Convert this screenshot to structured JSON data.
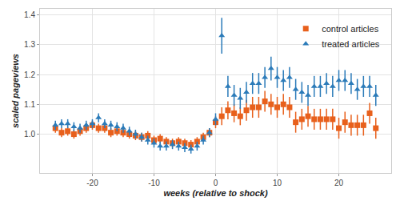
{
  "chart_data": {
    "type": "scatter",
    "x_label": "weeks (relative to shock)",
    "y_label": "scaled pageviews",
    "x": [
      -26,
      -25,
      -24,
      -23,
      -22,
      -21,
      -20,
      -19,
      -18,
      -17,
      -16,
      -15,
      -14,
      -13,
      -12,
      -11,
      -10,
      -9,
      -8,
      -7,
      -6,
      -5,
      -4,
      -3,
      -2,
      -1,
      0,
      1,
      2,
      3,
      4,
      5,
      6,
      7,
      8,
      9,
      10,
      11,
      12,
      13,
      14,
      15,
      16,
      17,
      18,
      19,
      20,
      21,
      22,
      23,
      24,
      25,
      26
    ],
    "series": [
      {
        "name": "control articles",
        "color": "#e8601c",
        "marker": "square",
        "values": [
          1.02,
          1.005,
          1.01,
          1.0,
          1.01,
          1.02,
          1.03,
          1.02,
          1.02,
          1.005,
          1.01,
          1.005,
          1.0,
          0.995,
          0.99,
          0.995,
          0.98,
          0.985,
          0.975,
          0.97,
          0.975,
          0.97,
          0.965,
          0.975,
          0.99,
          1.005,
          1.04,
          1.06,
          1.08,
          1.07,
          1.06,
          1.08,
          1.09,
          1.09,
          1.11,
          1.1,
          1.09,
          1.1,
          1.09,
          1.04,
          1.05,
          1.06,
          1.05,
          1.05,
          1.05,
          1.05,
          1.02,
          1.04,
          1.03,
          1.03,
          1.03,
          1.07,
          1.02
        ],
        "error": [
          0.015,
          0.015,
          0.015,
          0.015,
          0.015,
          0.015,
          0.015,
          0.015,
          0.015,
          0.015,
          0.015,
          0.015,
          0.015,
          0.015,
          0.015,
          0.015,
          0.015,
          0.015,
          0.015,
          0.015,
          0.015,
          0.015,
          0.015,
          0.015,
          0.015,
          0.015,
          0.02,
          0.03,
          0.03,
          0.03,
          0.03,
          0.035,
          0.035,
          0.035,
          0.035,
          0.035,
          0.035,
          0.035,
          0.035,
          0.035,
          0.035,
          0.035,
          0.035,
          0.035,
          0.035,
          0.035,
          0.035,
          0.035,
          0.035,
          0.035,
          0.035,
          0.035,
          0.035
        ]
      },
      {
        "name": "treated articles",
        "color": "#2b7bb9",
        "marker": "triangle-up",
        "values": [
          1.03,
          1.035,
          1.035,
          1.025,
          1.02,
          1.03,
          1.035,
          1.055,
          1.035,
          1.03,
          1.025,
          1.02,
          1.01,
          1.0,
          0.99,
          0.98,
          0.97,
          0.96,
          0.96,
          0.965,
          0.96,
          0.955,
          0.95,
          0.96,
          0.98,
          1.005,
          1.05,
          1.33,
          1.16,
          1.13,
          1.12,
          1.14,
          1.17,
          1.17,
          1.19,
          1.22,
          1.19,
          1.18,
          1.19,
          1.15,
          1.14,
          1.13,
          1.16,
          1.16,
          1.17,
          1.16,
          1.18,
          1.18,
          1.17,
          1.15,
          1.16,
          1.16,
          1.13
        ],
        "error": [
          0.015,
          0.015,
          0.015,
          0.015,
          0.015,
          0.015,
          0.015,
          0.015,
          0.015,
          0.015,
          0.015,
          0.015,
          0.015,
          0.015,
          0.015,
          0.015,
          0.015,
          0.015,
          0.015,
          0.015,
          0.015,
          0.015,
          0.015,
          0.015,
          0.015,
          0.015,
          0.02,
          0.06,
          0.035,
          0.035,
          0.035,
          0.035,
          0.035,
          0.035,
          0.035,
          0.04,
          0.035,
          0.035,
          0.035,
          0.035,
          0.035,
          0.035,
          0.035,
          0.035,
          0.035,
          0.035,
          0.035,
          0.035,
          0.035,
          0.035,
          0.035,
          0.035,
          0.035
        ]
      }
    ],
    "xlim": [
      -28.5,
      28.5
    ],
    "xticks": [
      -20,
      -10,
      0,
      10,
      20
    ],
    "ylim": [
      0.87,
      1.42
    ],
    "yticks": [
      {
        "value": 1,
        "label": "1.0"
      },
      1.1,
      1.2,
      1.3,
      1.4
    ],
    "grid": true,
    "legend": "upper right"
  }
}
